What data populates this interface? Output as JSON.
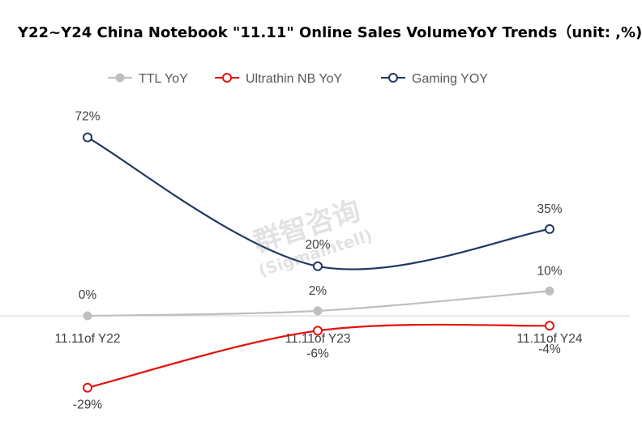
{
  "chart_data": {
    "type": "line",
    "title": "Y22~Y24 China Notebook \"11.11\" Online Sales VolumeYoY Trends（unit: ,%)",
    "categories": [
      "11.11of Y22",
      "11.11of Y23",
      "11.11of Y24"
    ],
    "series": [
      {
        "name": "TTL YoY",
        "values": [
          0,
          2,
          10
        ],
        "labels": [
          "0%",
          "2%",
          "10%"
        ],
        "color": "#BFBFBF",
        "marker": "filled"
      },
      {
        "name": "Ultrathin NB YoY",
        "values": [
          -29,
          -6,
          -4
        ],
        "labels": [
          "-29%",
          "-6%",
          "-4%"
        ],
        "color": "#E3120B",
        "marker": "hollow"
      },
      {
        "name": "Gaming YOY",
        "values": [
          72,
          20,
          35
        ],
        "labels": [
          "72%",
          "20%",
          "35%"
        ],
        "color": "#1F3864",
        "marker": "hollow"
      }
    ],
    "legend_position": "top",
    "ylim": [
      -35,
      80
    ],
    "watermark": "群智咨询 (Sigmaintell)"
  }
}
